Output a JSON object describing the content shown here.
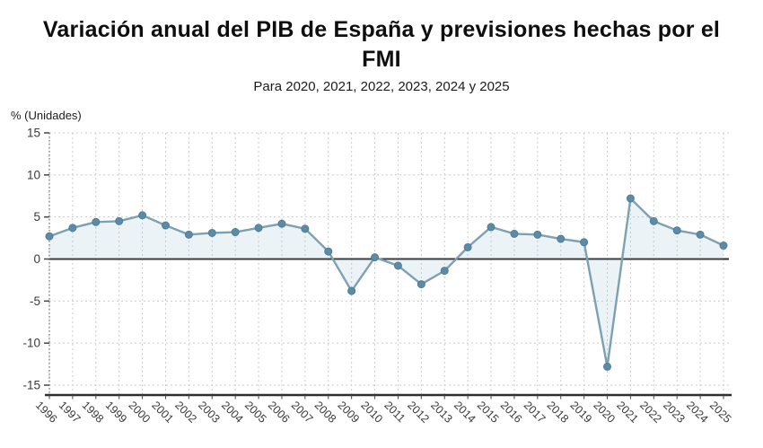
{
  "header": {
    "title_line1": "Variación anual del PIB de España y previsiones hechas por el",
    "title_line2": "FMI",
    "subtitle": "Para 2020, 2021, 2022, 2023, 2024 y 2025",
    "unit_label": "% (Unidades)"
  },
  "chart_data": {
    "type": "line",
    "title": "Variación anual del PIB de España y previsiones hechas por el FMI",
    "subtitle": "Para 2020, 2021, 2022, 2023, 2024 y 2025",
    "xlabel": "",
    "ylabel": "% (Unidades)",
    "x": [
      "1996",
      "1997",
      "1998",
      "1999",
      "2000",
      "2001",
      "2002",
      "2003",
      "2004",
      "2005",
      "2006",
      "2007",
      "2008",
      "2009",
      "2010",
      "2011",
      "2012",
      "2013",
      "2014",
      "2015",
      "2016",
      "2017",
      "2018",
      "2019",
      "2020",
      "2021",
      "2022",
      "2023",
      "2024",
      "2025"
    ],
    "series": [
      {
        "name": "Variación anual del PIB de España (%)",
        "values": [
          2.7,
          3.7,
          4.4,
          4.5,
          5.2,
          4.0,
          2.9,
          3.1,
          3.2,
          3.7,
          4.2,
          3.6,
          0.9,
          -3.8,
          0.2,
          -0.8,
          -3.0,
          -1.4,
          1.4,
          3.8,
          3.0,
          2.9,
          2.4,
          2.0,
          -12.8,
          7.2,
          4.5,
          3.4,
          2.9,
          1.6
        ]
      }
    ],
    "ylim": [
      -15,
      15
    ],
    "yticks": [
      15,
      10,
      5,
      0,
      -5,
      -10,
      -15
    ],
    "grid": true,
    "grid_style": "dotted",
    "legend": "none",
    "marker": "circle",
    "fill_to_zero": true,
    "colors": {
      "line": "#7da0b2",
      "marker": "#5d8ba6",
      "marker_stroke": "#4d7e99",
      "area_fill": "rgba(165,200,220,0.22)",
      "zero_line": "#2e2e2e",
      "axis": "#2e2e2e",
      "grid": "#cbcbcb",
      "tick_label": "#3a3a3a"
    }
  }
}
